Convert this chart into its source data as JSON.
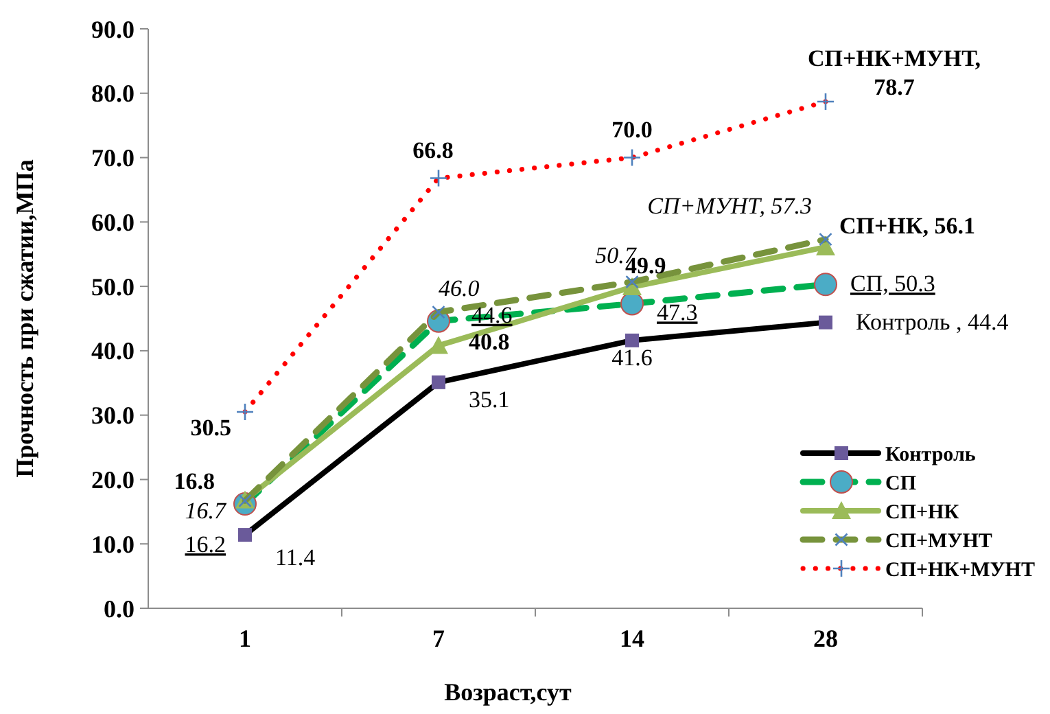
{
  "chart_data": {
    "type": "line",
    "xlabel": "Возраст,сут",
    "ylabel": "Прочность при сжатии,МПа",
    "categories": [
      "1",
      "7",
      "14",
      "28"
    ],
    "ylim": [
      0,
      90
    ],
    "yticks": [
      {
        "value": 0,
        "label": "0.0"
      },
      {
        "value": 10,
        "label": "10.0"
      },
      {
        "value": 20,
        "label": "20.0"
      },
      {
        "value": 30,
        "label": "30.0"
      },
      {
        "value": 40,
        "label": "40.0"
      },
      {
        "value": 50,
        "label": "50.0"
      },
      {
        "value": 60,
        "label": "60.0"
      },
      {
        "value": 70,
        "label": "70.0"
      },
      {
        "value": 80,
        "label": "80.0"
      },
      {
        "value": 90,
        "label": "90.0"
      }
    ],
    "grid": false,
    "legend": "bottom right",
    "series": [
      {
        "name": "Контроль",
        "color": "#000000",
        "marker": "square",
        "line_style": "solid",
        "values": [
          11.4,
          35.1,
          41.6,
          44.4
        ],
        "value_labels": [
          "11.4",
          "35.1",
          "41.6",
          "Контроль , 44.4"
        ]
      },
      {
        "name": "СП",
        "color": "#00b050",
        "marker": "circle",
        "line_style": "dashed",
        "values": [
          16.2,
          44.6,
          47.3,
          50.3
        ],
        "value_labels": [
          "16.2",
          "44.6",
          "47.3",
          "СП, 50.3"
        ]
      },
      {
        "name": "СП+НК",
        "color": "#9bbb59",
        "marker": "triangle",
        "line_style": "solid",
        "values": [
          16.8,
          40.8,
          49.9,
          56.1
        ],
        "value_labels": [
          "16.8",
          "40.8",
          "49.9",
          "СП+НК,  56.1"
        ]
      },
      {
        "name": "СП+МУНТ",
        "color": "#77933c",
        "marker": "cross",
        "line_style": "dashed",
        "values": [
          16.7,
          46.0,
          50.7,
          57.3
        ],
        "value_labels": [
          "16.7",
          "46.0",
          "50.7",
          "СП+МУНТ, 57.3"
        ]
      },
      {
        "name": "СП+НК+МУНТ",
        "color": "#ff0000",
        "marker": "cross",
        "line_style": "dotted",
        "values": [
          30.5,
          66.8,
          70.0,
          78.7
        ],
        "value_labels": [
          "30.5",
          "66.8",
          "70.0",
          "СП+НК+МУНТ, 78.7"
        ]
      }
    ]
  }
}
